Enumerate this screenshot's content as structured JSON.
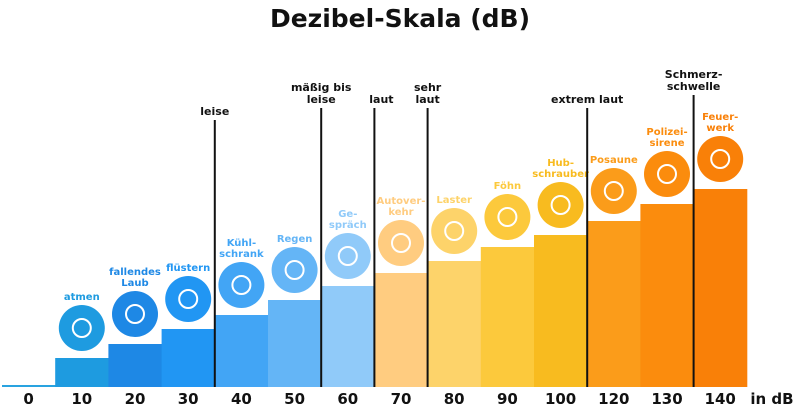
{
  "title": "Dezibel-Skala (dB)",
  "unit_label": "in dB",
  "chart_data": {
    "type": "bar",
    "title": "Dezibel-Skala (dB)",
    "xlabel": "in dB",
    "categories": [
      "0",
      "10",
      "20",
      "30",
      "40",
      "50",
      "60",
      "70",
      "80",
      "90",
      "100",
      "120",
      "130",
      "140"
    ],
    "values": [
      0,
      10,
      20,
      30,
      40,
      50,
      60,
      70,
      80,
      90,
      100,
      120,
      130,
      140
    ],
    "sources": [
      {
        "label": "",
        "icon": ""
      },
      {
        "label": "atmen",
        "icon": "lungs-icon"
      },
      {
        "label": "fallendes Laub",
        "icon": "falling-leaves-icon"
      },
      {
        "label": "flüstern",
        "icon": "whisper-icon"
      },
      {
        "label": "Kühl-schrank",
        "icon": "fridge-icon"
      },
      {
        "label": "Regen",
        "icon": "rain-cloud-icon"
      },
      {
        "label": "Ge-spräch",
        "icon": "speech-bubbles-icon"
      },
      {
        "label": "Autover-kehr",
        "icon": "car-icon"
      },
      {
        "label": "Laster",
        "icon": "truck-icon"
      },
      {
        "label": "Föhn",
        "icon": "hair-dryer-icon"
      },
      {
        "label": "Hub-schrauber",
        "icon": "helicopter-icon"
      },
      {
        "label": "Posaune",
        "icon": "trombone-icon"
      },
      {
        "label": "Polizei-sirene",
        "icon": "police-car-icon"
      },
      {
        "label": "Feuer-werk",
        "icon": "fireworks-icon"
      }
    ],
    "colors": [
      "#29a3e0",
      "#1e9be0",
      "#1e88e5",
      "#2196f3",
      "#42a5f5",
      "#64b5f6",
      "#90caf9",
      "#ffcc80",
      "#fdd36a",
      "#fcc93c",
      "#f8bb1f",
      "#fb9c1a",
      "#fb8c0d",
      "#f98008"
    ],
    "zones": [
      {
        "label": "leise",
        "starts_before": "40"
      },
      {
        "label": "mäßig bis leise",
        "starts_before": "60"
      },
      {
        "label": "laut",
        "starts_before": "70"
      },
      {
        "label": "sehr laut",
        "starts_before": "80"
      },
      {
        "label": "extrem laut",
        "starts_before": "120"
      },
      {
        "label": "Schmerz-schwelle",
        "starts_before": "140"
      }
    ]
  }
}
